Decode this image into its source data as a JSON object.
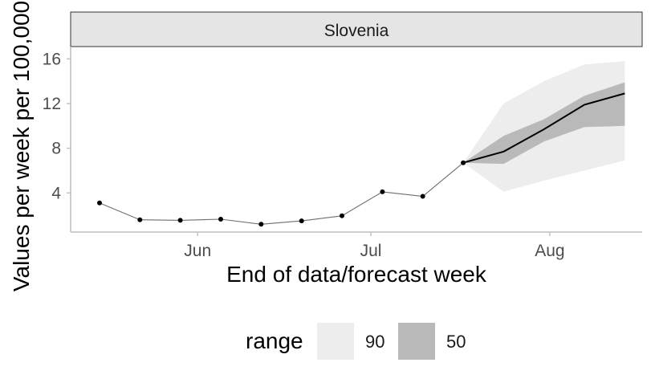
{
  "chart_data": {
    "type": "line",
    "panel_title": "Slovenia",
    "xlabel": "End of data/forecast week",
    "ylabel": "Values per week per 100,000",
    "x_ticks": [
      {
        "label": "Jun",
        "date": "2021-06-01"
      },
      {
        "label": "Jul",
        "date": "2021-07-01"
      },
      {
        "label": "Aug",
        "date": "2021-08-01"
      }
    ],
    "y_ticks": [
      4,
      8,
      12,
      16
    ],
    "xlim": [
      "2021-05-10",
      "2021-08-17"
    ],
    "ylim": [
      0.5,
      17.1
    ],
    "grid": false,
    "legend_position": "bottom",
    "observed": {
      "x": [
        "2021-05-15",
        "2021-05-22",
        "2021-05-29",
        "2021-06-05",
        "2021-06-12",
        "2021-06-19",
        "2021-06-26",
        "2021-07-03",
        "2021-07-10",
        "2021-07-17"
      ],
      "y": [
        3.1,
        1.6,
        1.55,
        1.65,
        1.2,
        1.5,
        1.95,
        4.1,
        3.7,
        6.7
      ]
    },
    "forecast": {
      "x": [
        "2021-07-17",
        "2021-07-24",
        "2021-07-31",
        "2021-08-07",
        "2021-08-14"
      ],
      "median": [
        6.7,
        7.7,
        9.7,
        11.9,
        12.9
      ],
      "lower_50": [
        6.7,
        6.6,
        8.6,
        9.9,
        10.0
      ],
      "upper_50": [
        6.7,
        9.1,
        10.6,
        12.7,
        13.9
      ],
      "lower_90": [
        6.7,
        4.1,
        5.1,
        6.0,
        6.9
      ],
      "upper_90": [
        6.7,
        12.0,
        14.0,
        15.5,
        15.8
      ]
    },
    "legend": {
      "title": "range",
      "entries": [
        {
          "label": "90",
          "color": "#ededed"
        },
        {
          "label": "50",
          "color": "#b9b9b9"
        }
      ]
    },
    "colors": {
      "observed_line": "#6e6e6e",
      "observed_point": "#000000",
      "median_line": "#000000",
      "strip_fill": "#e5e5e5",
      "axis": "#bfbfbf"
    }
  }
}
